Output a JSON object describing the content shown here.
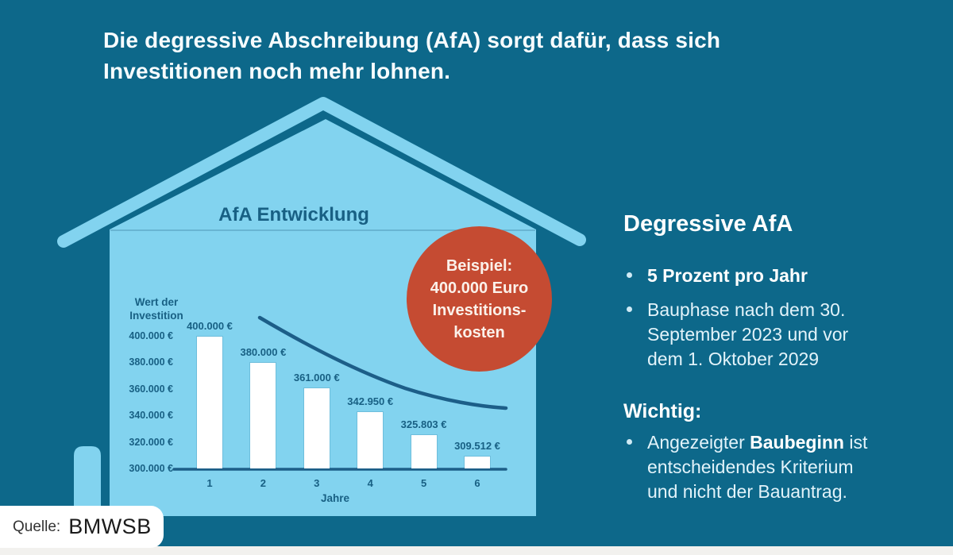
{
  "header": {
    "title_line1": "Die degressive Abschreibung (AfA) sorgt dafür, dass sich",
    "title_line2": "Investitionen noch mehr lohnen."
  },
  "house_badge": {
    "lines": [
      "Beispiel:",
      "400.000 Euro",
      "Investitions-",
      "kosten"
    ]
  },
  "chart_data": {
    "type": "bar",
    "title": "AfA Entwicklung",
    "ylabel": "Wert der Investition",
    "xlabel": "Jahre",
    "categories": [
      "1",
      "2",
      "3",
      "4",
      "5",
      "6"
    ],
    "values": [
      400000,
      380000,
      361000,
      342950,
      325803,
      309512
    ],
    "bar_value_labels": [
      "400.000 €",
      "380.000 €",
      "361.000 €",
      "342.950 €",
      "325.803 €",
      "309.512 €"
    ],
    "y_tick_values": [
      400000,
      380000,
      360000,
      340000,
      320000,
      300000
    ],
    "y_tick_labels": [
      "400.000 €",
      "380.000 €",
      "360.000 €",
      "340.000 €",
      "320.000 €",
      "300.000 €"
    ],
    "ylim": [
      300000,
      400000
    ],
    "grid": false,
    "bar_color": "#FFFFFF",
    "overlay": "decreasing exponential trend curve",
    "annotation": "Beispiel: 400.000 Euro Investitionskosten"
  },
  "info_panel": {
    "heading": "Degressive AfA",
    "bullets": [
      {
        "style": "bold",
        "lines": [
          "5 Prozent pro Jahr"
        ]
      },
      {
        "style": "regular",
        "lines": [
          "Bauphase nach dem 30.",
          "September 2023 und vor",
          "dem 1. Oktober 2029"
        ]
      }
    ],
    "subheading": "Wichtig:",
    "important_bullet": {
      "line1_pre": "Angezeigter ",
      "line1_bold": "Baubeginn",
      "line1_post": " ist",
      "line2": "entscheidendes Kriterium",
      "line3": "und nicht der Bauantrag."
    }
  },
  "source": {
    "prefix": "Quelle:",
    "value": "BMWSB"
  },
  "colors": {
    "background": "#0D688A",
    "house_light_blue": "#82D3EF",
    "accent_red": "#C54B32",
    "chart_text_blue": "#186084",
    "curve_blue": "#1C5E88",
    "bar_fill": "#FFFFFF",
    "heading_text": "#FFFFFF",
    "body_text": "#E2F3FA",
    "badge_text": "#FBF1EA",
    "bottom_strip": "#F2F1EE"
  }
}
